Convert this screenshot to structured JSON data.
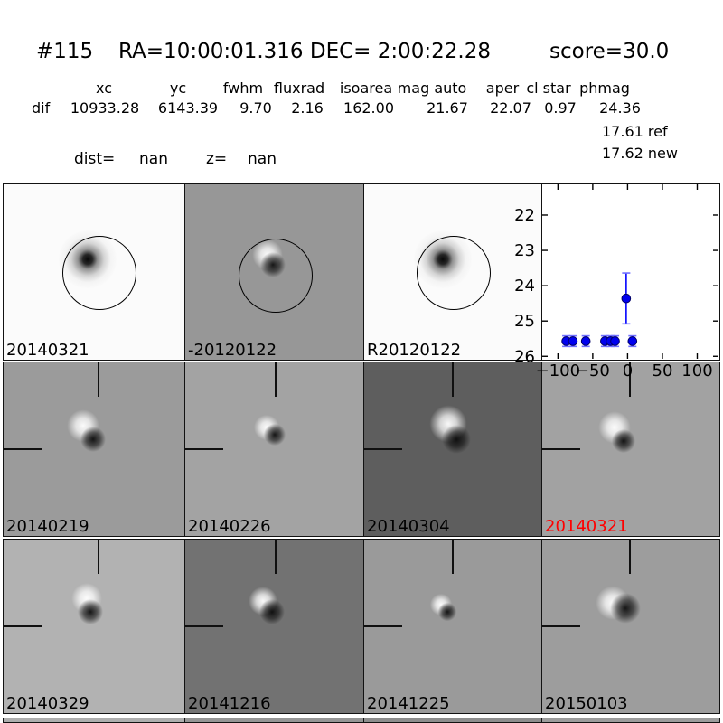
{
  "figure": {
    "title_id": "#115",
    "title_coords": "RA=10:00:01.316 DEC= 2:00:22.28",
    "title_score": "score=30.0"
  },
  "stats": {
    "headers": [
      "xc",
      "yc",
      "fwhm",
      "fluxrad",
      "isoarea",
      "mag auto",
      "aper",
      "cl star",
      "phmag"
    ],
    "row_label": "dif",
    "values": [
      "10933.28",
      "6143.39",
      "9.70",
      "2.16",
      "162.00",
      "21.67",
      "22.07",
      "0.97",
      "24.36"
    ],
    "ref_line": "17.61 ref",
    "new_line": "17.62 new",
    "dist_label": "dist=",
    "dist_value": "nan",
    "z_label": "z=",
    "z_value": "nan"
  },
  "panels": {
    "row1": [
      {
        "label": "20140321",
        "bg": "#fbfbfb",
        "label_color": "#000000"
      },
      {
        "label": "-20120122",
        "bg": "#979797",
        "label_color": "#000000"
      },
      {
        "label": "R20120122",
        "bg": "#fbfbfb",
        "label_color": "#000000"
      },
      {
        "label": "",
        "bg": "#ffffff"
      }
    ],
    "row2": [
      {
        "label": "20140219",
        "bg": "#9b9b9b",
        "label_color": "#000000"
      },
      {
        "label": "20140226",
        "bg": "#a3a3a3",
        "label_color": "#000000"
      },
      {
        "label": "20140304",
        "bg": "#5e5e5e",
        "label_color": "#000000"
      },
      {
        "label": "20140321",
        "bg": "#a2a2a2",
        "label_color": "#ff0000"
      }
    ],
    "row3": [
      {
        "label": "20140329",
        "bg": "#b2b2b2",
        "label_color": "#000000"
      },
      {
        "label": "20141216",
        "bg": "#727272",
        "label_color": "#000000"
      },
      {
        "label": "20141225",
        "bg": "#9a9a9a",
        "label_color": "#000000"
      },
      {
        "label": "20150103",
        "bg": "#9d9d9d",
        "label_color": "#000000"
      }
    ],
    "row4_bgs": [
      "#aeaeae",
      "#959595",
      "#8d8d8d",
      "#9c9c9c"
    ]
  },
  "chart_data": {
    "type": "scatter",
    "title": "",
    "xlabel": "",
    "ylabel": "",
    "legend": "none",
    "grid": false,
    "y_inverted": true,
    "xlim": [
      -122.5,
      130.5
    ],
    "ylim": [
      21.13,
      26.07
    ],
    "xticks": [
      -100,
      -50,
      0,
      50,
      100
    ],
    "xtick_labels": [
      "−100",
      "−50",
      "0",
      "50",
      "100"
    ],
    "yticks": [
      22,
      23,
      24,
      25,
      26
    ],
    "ytick_labels": [
      "22",
      "23",
      "24",
      "25",
      "26"
    ],
    "marker_color": "#0000ee",
    "marker_edge": "#000066",
    "errorbar_color": "#0000ff",
    "cap_color": "#7070ff",
    "points": [
      {
        "x": -88,
        "y": 25.57,
        "yerr": 0.15
      },
      {
        "x": -78.5,
        "y": 25.57,
        "yerr": 0.15
      },
      {
        "x": -60,
        "y": 25.57,
        "yerr": 0.15
      },
      {
        "x": -32.5,
        "y": 25.57,
        "yerr": 0.15
      },
      {
        "x": -24.5,
        "y": 25.57,
        "yerr": 0.15
      },
      {
        "x": -18,
        "y": 25.57,
        "yerr": 0.15
      },
      {
        "x": 7,
        "y": 25.57,
        "yerr": 0.15
      },
      {
        "x": -2,
        "y": 24.36,
        "yerr": 0.72
      }
    ]
  }
}
